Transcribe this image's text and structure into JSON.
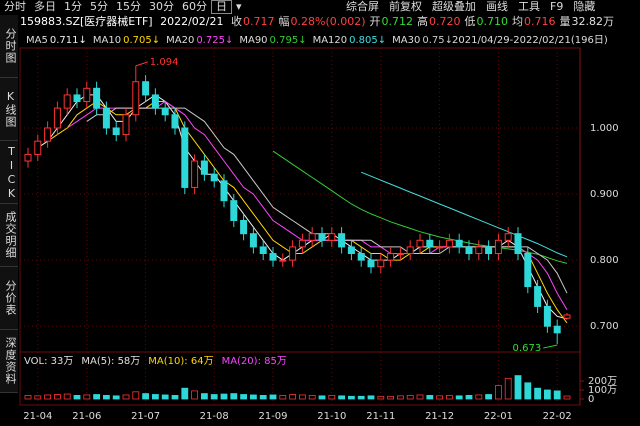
{
  "toolbar": {
    "left": [
      "分时",
      "多日",
      "1分",
      "5分",
      "15分",
      "30分",
      "60分",
      "日",
      "▾"
    ],
    "active": 7,
    "right": [
      "综合屏",
      "前复权",
      "超级叠加",
      "画线",
      "工具",
      "F9",
      "隐藏"
    ]
  },
  "sidebar": [
    "分时图",
    "K线图",
    "TICK",
    "成交明细",
    "分价表",
    "深度资料"
  ],
  "header": {
    "symbol": "159883.SZ[医疗器械ETF]",
    "date": "2022/02/21",
    "fields": [
      {
        "label": "收",
        "value": "0.717",
        "color": "#ff4040"
      },
      {
        "label": "幅",
        "value": "0.28%(0.002)",
        "color": "#ff4040"
      },
      {
        "label": "开",
        "value": "0.712",
        "color": "#33dd33"
      },
      {
        "label": "高",
        "value": "0.720",
        "color": "#ff4040"
      },
      {
        "label": "低",
        "value": "0.710",
        "color": "#33dd33"
      },
      {
        "label": "均",
        "value": "0.716",
        "color": "#ff4040"
      },
      {
        "label": "量",
        "value": "32.82万",
        "color": "#e0e0e0"
      }
    ]
  },
  "chart_data": [
    {
      "type": "candlestick",
      "range_label": "2021/04/29-2022/02/21(196日)",
      "up_color": "#ff3232",
      "down_color": "#2ed8d8",
      "grid": true,
      "ylim": [
        0.664,
        1.118
      ],
      "yticks": [
        {
          "value": 1.0,
          "label": "1.000"
        },
        {
          "value": 0.9,
          "label": "0.900"
        },
        {
          "value": 0.8,
          "label": "0.800"
        },
        {
          "value": 0.7,
          "label": "0.700"
        }
      ],
      "xticks": [
        {
          "value": 1,
          "label": "21-04"
        },
        {
          "value": 6,
          "label": "21-06"
        },
        {
          "value": 12,
          "label": "21-07"
        },
        {
          "value": 19,
          "label": "21-08"
        },
        {
          "value": 25,
          "label": "21-09"
        },
        {
          "value": 31,
          "label": "21-10"
        },
        {
          "value": 36,
          "label": "21-11"
        },
        {
          "value": 42,
          "label": "21-12"
        },
        {
          "value": 48,
          "label": "22-01"
        },
        {
          "value": 54,
          "label": "22-02"
        }
      ],
      "open": [
        0.95,
        0.96,
        0.98,
        1.0,
        1.03,
        1.05,
        1.04,
        1.06,
        1.03,
        1.0,
        0.99,
        1.02,
        1.07,
        1.05,
        1.03,
        1.02,
        1.0,
        0.91,
        0.95,
        0.93,
        0.92,
        0.89,
        0.86,
        0.84,
        0.82,
        0.81,
        0.8,
        0.8,
        0.82,
        0.83,
        0.84,
        0.83,
        0.84,
        0.82,
        0.81,
        0.8,
        0.79,
        0.8,
        0.81,
        0.81,
        0.82,
        0.83,
        0.82,
        0.82,
        0.83,
        0.82,
        0.81,
        0.82,
        0.81,
        0.83,
        0.84,
        0.81,
        0.76,
        0.73,
        0.7,
        0.712
      ],
      "high": [
        0.97,
        0.99,
        1.01,
        1.04,
        1.06,
        1.06,
        1.07,
        1.07,
        1.04,
        1.01,
        1.03,
        1.094,
        1.08,
        1.06,
        1.04,
        1.03,
        1.01,
        0.96,
        0.96,
        0.94,
        0.93,
        0.9,
        0.87,
        0.85,
        0.83,
        0.82,
        0.81,
        0.83,
        0.84,
        0.85,
        0.85,
        0.85,
        0.85,
        0.83,
        0.82,
        0.81,
        0.81,
        0.82,
        0.82,
        0.83,
        0.84,
        0.84,
        0.83,
        0.84,
        0.84,
        0.83,
        0.83,
        0.83,
        0.84,
        0.85,
        0.85,
        0.82,
        0.77,
        0.74,
        0.71,
        0.72
      ],
      "low": [
        0.94,
        0.95,
        0.97,
        0.99,
        1.02,
        1.03,
        1.03,
        1.02,
        0.99,
        0.98,
        0.98,
        1.01,
        1.04,
        1.02,
        1.01,
        0.99,
        0.9,
        0.9,
        0.92,
        0.91,
        0.88,
        0.85,
        0.83,
        0.81,
        0.8,
        0.79,
        0.79,
        0.79,
        0.81,
        0.82,
        0.82,
        0.82,
        0.81,
        0.8,
        0.79,
        0.78,
        0.78,
        0.79,
        0.8,
        0.8,
        0.81,
        0.81,
        0.81,
        0.81,
        0.81,
        0.8,
        0.8,
        0.8,
        0.8,
        0.82,
        0.8,
        0.75,
        0.72,
        0.69,
        0.673,
        0.71
      ],
      "close": [
        0.96,
        0.98,
        1.0,
        1.03,
        1.05,
        1.04,
        1.06,
        1.03,
        1.0,
        0.99,
        1.02,
        1.07,
        1.05,
        1.03,
        1.02,
        1.0,
        0.91,
        0.95,
        0.93,
        0.92,
        0.89,
        0.86,
        0.84,
        0.82,
        0.81,
        0.8,
        0.8,
        0.82,
        0.83,
        0.84,
        0.83,
        0.84,
        0.82,
        0.81,
        0.8,
        0.79,
        0.8,
        0.81,
        0.81,
        0.82,
        0.83,
        0.82,
        0.82,
        0.83,
        0.82,
        0.81,
        0.82,
        0.81,
        0.83,
        0.84,
        0.81,
        0.76,
        0.73,
        0.7,
        0.69,
        0.717
      ],
      "series": [
        {
          "name": "MA5",
          "color": "#f0f0f0",
          "arrow": "↓",
          "values": [
            null,
            0.97,
            0.98,
            1.0,
            1.02,
            1.04,
            1.05,
            1.05,
            1.03,
            1.01,
            1.01,
            1.03,
            1.04,
            1.05,
            1.04,
            1.02,
            0.97,
            0.95,
            0.93,
            0.93,
            0.91,
            0.89,
            0.87,
            0.85,
            0.83,
            0.81,
            0.8,
            0.81,
            0.82,
            0.83,
            0.83,
            0.84,
            0.83,
            0.82,
            0.81,
            0.8,
            0.8,
            0.8,
            0.81,
            0.81,
            0.82,
            0.82,
            0.82,
            0.82,
            0.82,
            0.82,
            0.82,
            0.82,
            0.82,
            0.83,
            0.82,
            0.79,
            0.76,
            0.73,
            0.715,
            0.711
          ]
        },
        {
          "name": "MA10",
          "color": "#ffd700",
          "arrow": "↓",
          "values": [
            null,
            null,
            0.98,
            0.99,
            1.0,
            1.02,
            1.03,
            1.04,
            1.03,
            1.02,
            1.02,
            1.03,
            1.03,
            1.04,
            1.04,
            1.03,
            1.0,
            0.98,
            0.96,
            0.94,
            0.92,
            0.91,
            0.89,
            0.87,
            0.85,
            0.83,
            0.82,
            0.81,
            0.81,
            0.82,
            0.83,
            0.83,
            0.83,
            0.83,
            0.82,
            0.81,
            0.81,
            0.8,
            0.8,
            0.81,
            0.81,
            0.82,
            0.82,
            0.82,
            0.82,
            0.82,
            0.82,
            0.82,
            0.82,
            0.82,
            0.82,
            0.81,
            0.78,
            0.75,
            0.725,
            0.705
          ]
        },
        {
          "name": "MA20",
          "color": "#ff44ff",
          "arrow": "↓",
          "values": [
            null,
            null,
            null,
            null,
            1.0,
            1.01,
            1.02,
            1.03,
            1.03,
            1.03,
            1.03,
            1.03,
            1.03,
            1.03,
            1.04,
            1.03,
            1.02,
            1.0,
            0.99,
            0.97,
            0.95,
            0.93,
            0.91,
            0.9,
            0.88,
            0.86,
            0.85,
            0.84,
            0.83,
            0.83,
            0.83,
            0.83,
            0.83,
            0.83,
            0.83,
            0.82,
            0.82,
            0.81,
            0.81,
            0.81,
            0.81,
            0.81,
            0.82,
            0.82,
            0.82,
            0.82,
            0.82,
            0.82,
            0.82,
            0.82,
            0.82,
            0.81,
            0.8,
            0.78,
            0.75,
            0.725
          ]
        },
        {
          "name": "MA90",
          "color": "#33cc33",
          "arrow": "↓",
          "values": [
            null,
            null,
            null,
            null,
            null,
            null,
            null,
            null,
            null,
            null,
            null,
            null,
            null,
            null,
            null,
            null,
            null,
            null,
            null,
            null,
            null,
            null,
            null,
            null,
            null,
            0.965,
            0.955,
            0.945,
            0.935,
            0.925,
            0.915,
            0.905,
            0.895,
            0.885,
            0.877,
            0.87,
            0.864,
            0.858,
            0.853,
            0.848,
            0.843,
            0.839,
            0.835,
            0.832,
            0.829,
            0.826,
            0.823,
            0.821,
            0.819,
            0.817,
            0.815,
            0.812,
            0.809,
            0.804,
            0.799,
            0.795
          ]
        },
        {
          "name": "MA120",
          "color": "#44dddd",
          "arrow": "↓",
          "values": [
            null,
            null,
            null,
            null,
            null,
            null,
            null,
            null,
            null,
            null,
            null,
            null,
            null,
            null,
            null,
            null,
            null,
            null,
            null,
            null,
            null,
            null,
            null,
            null,
            null,
            null,
            null,
            null,
            null,
            null,
            null,
            null,
            null,
            null,
            0.933,
            0.927,
            0.921,
            0.915,
            0.909,
            0.903,
            0.897,
            0.891,
            0.885,
            0.879,
            0.873,
            0.867,
            0.861,
            0.855,
            0.849,
            0.843,
            0.837,
            0.831,
            0.825,
            0.818,
            0.811,
            0.805
          ]
        },
        {
          "name": "MA30",
          "color": "#c8c8c8",
          "arrow": "↓",
          "values": [
            null,
            null,
            null,
            null,
            null,
            null,
            1.01,
            1.02,
            1.02,
            1.03,
            1.03,
            1.03,
            1.03,
            1.03,
            1.03,
            1.03,
            1.03,
            1.02,
            1.01,
            0.99,
            0.97,
            0.96,
            0.94,
            0.92,
            0.9,
            0.88,
            0.87,
            0.86,
            0.85,
            0.84,
            0.84,
            0.84,
            0.83,
            0.83,
            0.83,
            0.83,
            0.82,
            0.82,
            0.82,
            0.81,
            0.81,
            0.81,
            0.81,
            0.82,
            0.82,
            0.82,
            0.82,
            0.82,
            0.82,
            0.82,
            0.82,
            0.82,
            0.81,
            0.8,
            0.78,
            0.75
          ]
        }
      ]
    },
    {
      "type": "bar",
      "legend": [
        {
          "text": "VOL: 33万",
          "color": "#e0e0e0"
        },
        {
          "text": "MA(5): 58万",
          "color": "#e0e0e0"
        },
        {
          "text": "MA(10): 64万",
          "color": "#ffd700"
        },
        {
          "text": "MA(20): 85万",
          "color": "#ff44ff"
        }
      ],
      "ylim": [
        0,
        411
      ],
      "yticks": [
        {
          "value": 200,
          "label": "200万"
        },
        {
          "value": 100,
          "label": "100万"
        },
        0
      ],
      "values": [
        40,
        35,
        45,
        50,
        55,
        40,
        45,
        50,
        40,
        35,
        45,
        80,
        60,
        50,
        45,
        40,
        120,
        90,
        60,
        50,
        55,
        60,
        50,
        45,
        40,
        45,
        40,
        50,
        45,
        40,
        35,
        40,
        35,
        30,
        30,
        35,
        30,
        30,
        35,
        40,
        45,
        40,
        35,
        40,
        35,
        40,
        45,
        50,
        150,
        230,
        260,
        180,
        120,
        100,
        90,
        33
      ]
    }
  ]
}
